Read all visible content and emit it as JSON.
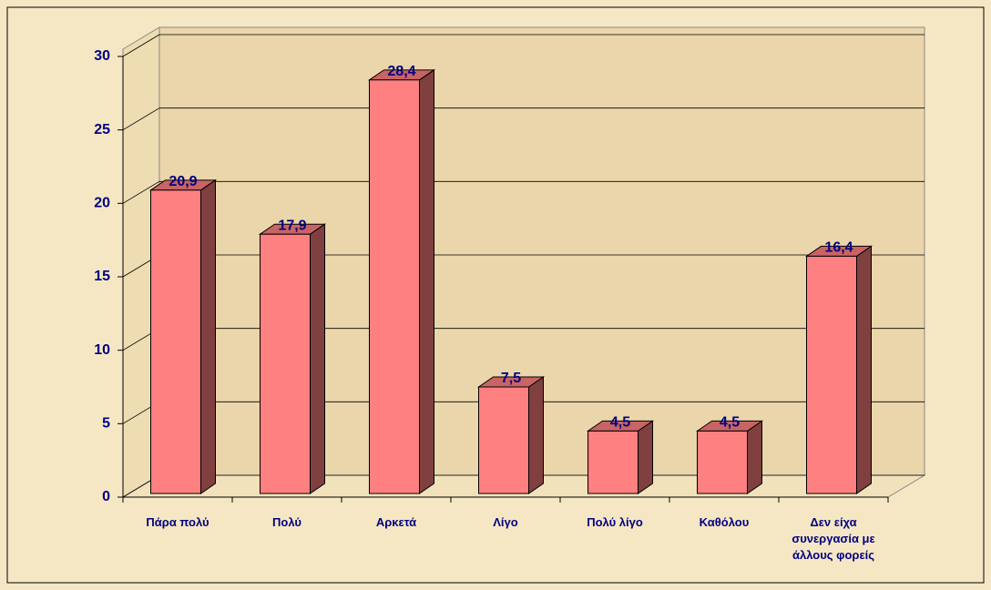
{
  "chart_data": {
    "type": "bar3d",
    "categories": [
      "Πάρα πολύ",
      "Πολύ",
      "Αρκετά",
      "Λίγο",
      "Πολύ λίγο",
      "Καθόλου",
      "Δεν είχα συνεργασία με άλλους φορείς"
    ],
    "values": [
      20.9,
      17.9,
      28.4,
      7.5,
      4.5,
      4.5,
      16.4
    ],
    "value_labels": [
      "20,9",
      "17,9",
      "28,4",
      "7,5",
      "4,5",
      "4,5",
      "16,4"
    ],
    "color": "#ff8080",
    "ylim": [
      0,
      30
    ],
    "yticks": [
      0,
      5,
      10,
      15,
      20,
      25,
      30
    ],
    "grid": true
  }
}
